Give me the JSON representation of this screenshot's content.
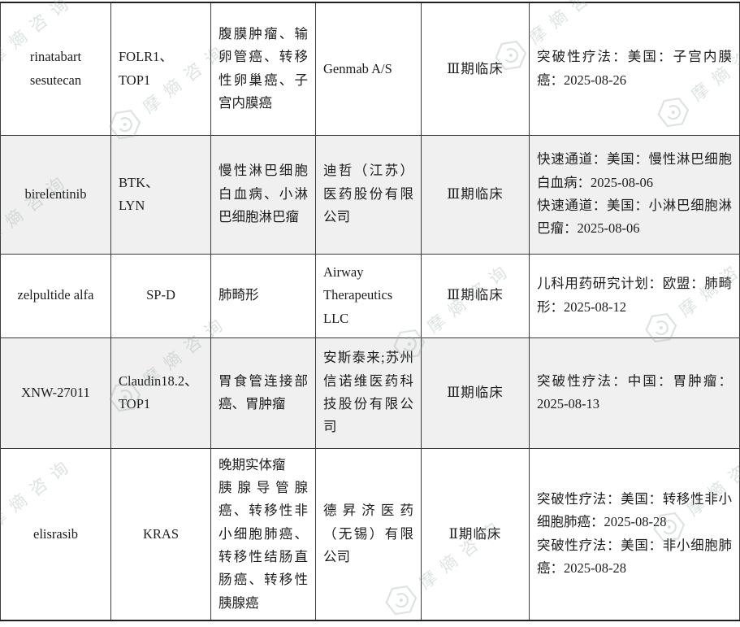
{
  "watermark": {
    "text": "摩熵咨询",
    "icon": "hexagon-logo-icon",
    "color": "#8ba19a"
  },
  "colors": {
    "row_shade": "#f0f0f0",
    "border": "#3b3b3b",
    "text": "#1d1d1f",
    "background": "#ffffff"
  },
  "table": {
    "rows": [
      {
        "drug": "rinatabart sesutecan",
        "target_lines": [
          "FOLR1、",
          "TOP1"
        ],
        "indication_paragraphs": [
          "腹膜肿瘤、输卵管癌、转移性卵巢癌、子宫内膜癌"
        ],
        "company": "Genmab A/S",
        "phase": "Ⅲ期临床",
        "designations": [
          "突破性疗法：美国：子宫内膜癌：2025-08-26"
        ]
      },
      {
        "drug": "birelentinib",
        "target_lines": [
          "BTK、",
          "LYN"
        ],
        "indication_paragraphs": [
          "慢性淋巴细胞白血病、小淋巴细胞淋巴瘤"
        ],
        "company": "迪哲（江苏）医药股份有限公司",
        "phase": "Ⅲ期临床",
        "designations": [
          "快速通道：美国：慢性淋巴细胞白血病：2025-08-06",
          "快速通道：美国：小淋巴细胞淋巴瘤：2025-08-06"
        ]
      },
      {
        "drug": "zelpultide alfa",
        "target_lines": [
          "SP-D"
        ],
        "indication_paragraphs": [
          "肺畸形"
        ],
        "company": "Airway Therapeutics LLC",
        "phase": "Ⅲ期临床",
        "designations": [
          "儿科用药研究计划：欧盟：肺畸形：2025-08-12"
        ]
      },
      {
        "drug": "XNW-27011",
        "target_lines": [
          "Claudin18.2、",
          "TOP1"
        ],
        "indication_paragraphs": [
          "胃食管连接部癌、胃肿瘤"
        ],
        "company": "安斯泰来;苏州信诺维医药科技股份有限公司",
        "phase": "Ⅲ期临床",
        "designations": [
          "突破性疗法：中国：胃肿瘤：2025-08-13"
        ]
      },
      {
        "drug": "elisrasib",
        "target_lines": [
          "KRAS"
        ],
        "indication_paragraphs": [
          "晚期实体瘤",
          "胰腺导管腺癌、转移性非小细胞肺癌、转移性结肠直肠癌、转移性胰腺癌"
        ],
        "company": "德昇济医药（无锡）有限公司",
        "phase": "Ⅱ期临床",
        "designations": [
          "突破性疗法：美国：转移性非小细胞肺癌：2025-08-28",
          "突破性疗法：美国：非小细胞肺癌：2025-08-28"
        ]
      }
    ]
  }
}
